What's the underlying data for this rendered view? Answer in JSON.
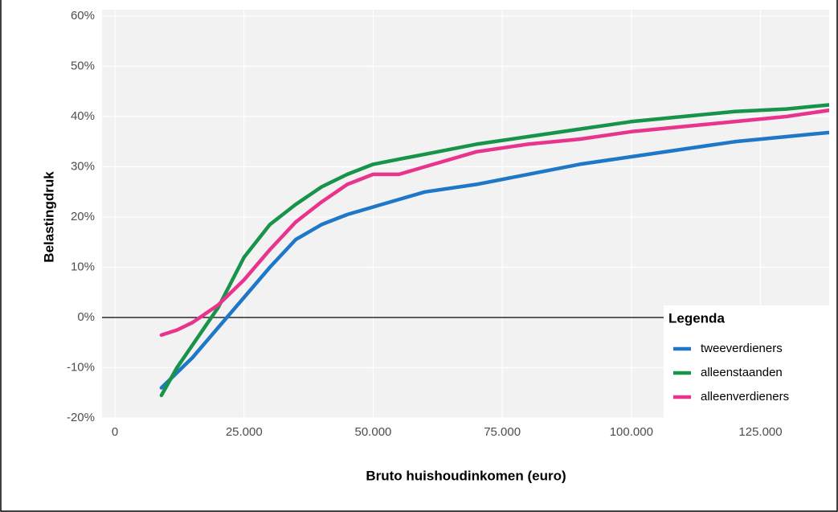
{
  "chart_data": {
    "type": "line",
    "x_label": "Bruto huishoudinkomen (euro)",
    "y_label": "Belastingdruk",
    "legend_title": "Legenda",
    "legend": "bottom-right",
    "grid": true,
    "hline": 0,
    "xlim": [
      -2500,
      138300
    ],
    "ylim": [
      -20,
      60
    ],
    "xticks": [
      0,
      {
        "value": 25000,
        "label": "25.000"
      },
      {
        "value": 50000,
        "label": "50.000"
      },
      {
        "value": 75000,
        "label": "75.000"
      },
      {
        "value": 100000,
        "label": "100.000"
      },
      {
        "value": 125000,
        "label": "125.000"
      }
    ],
    "yticks": [
      {
        "value": -20,
        "label": "-20%"
      },
      {
        "value": -10,
        "label": "-10%"
      },
      {
        "value": 0,
        "label": "0%"
      },
      {
        "value": 10,
        "label": "10%"
      },
      {
        "value": 20,
        "label": "20%"
      },
      {
        "value": 30,
        "label": "30%"
      },
      {
        "value": 40,
        "label": "40%"
      },
      {
        "value": 50,
        "label": "50%"
      },
      {
        "value": 60,
        "label": "60%"
      }
    ],
    "x": [
      9000,
      12000,
      15000,
      20000,
      25000,
      30000,
      35000,
      40000,
      45000,
      50000,
      55000,
      60000,
      70000,
      80000,
      90000,
      100000,
      110000,
      120000,
      130000,
      140000
    ],
    "series": [
      {
        "name": "tweeverdieners",
        "color": "#1f77c8",
        "values": [
          -14,
          -11,
          -8,
          -2,
          4,
          10,
          15.5,
          18.5,
          20.5,
          22,
          23.5,
          25,
          26.5,
          28.5,
          30.5,
          32,
          33.5,
          35,
          36,
          37
        ]
      },
      {
        "name": "alleenstaanden",
        "color": "#17934a",
        "values": [
          -15.5,
          -10,
          -5.5,
          2,
          12,
          18.5,
          22.5,
          26,
          28.5,
          30.5,
          31.5,
          32.5,
          34.5,
          36,
          37.5,
          39,
          40,
          41,
          41.5,
          42.5
        ]
      },
      {
        "name": "alleenverdieners",
        "color": "#e8348c",
        "values": [
          -3.5,
          -2.5,
          -1,
          2.5,
          7.5,
          13.5,
          19,
          23,
          26.5,
          28.5,
          28.5,
          30,
          33,
          34.5,
          35.5,
          37,
          38,
          39,
          40,
          41.5
        ]
      }
    ]
  }
}
